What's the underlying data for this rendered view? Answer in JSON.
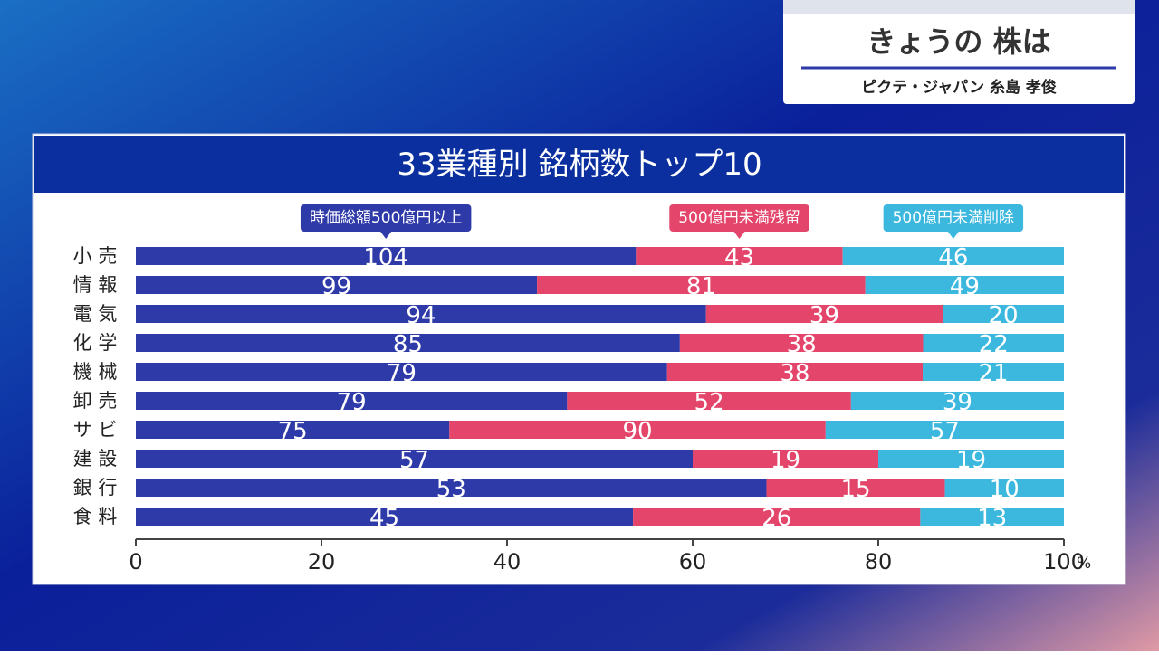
{
  "header": {
    "title": "きょうの 株は",
    "presenter": "ピクテ・ジャパン 糸島 孝俊"
  },
  "chart_data": {
    "type": "bar",
    "orientation": "horizontal",
    "stacked": "percent",
    "title": "33業種別 銘柄数トップ10",
    "categories": [
      "小 売",
      "情 報",
      "電 気",
      "化 学",
      "機 械",
      "卸 売",
      "サ ビ",
      "建 設",
      "銀 行",
      "食 料"
    ],
    "series": [
      {
        "name": "時価総額500億円以上",
        "color": "#2f3aa9",
        "values": [
          104,
          99,
          94,
          85,
          79,
          79,
          75,
          57,
          53,
          45
        ]
      },
      {
        "name": "500億円未満残留",
        "color": "#e4456a",
        "values": [
          43,
          81,
          39,
          38,
          38,
          52,
          90,
          19,
          15,
          26
        ]
      },
      {
        "name": "500億円未満削除",
        "color": "#3cb8df",
        "values": [
          46,
          49,
          20,
          22,
          21,
          39,
          57,
          19,
          10,
          13
        ]
      }
    ],
    "xlim": [
      0,
      100
    ],
    "xticks": [
      0,
      20,
      40,
      60,
      80,
      100
    ],
    "x_unit": "%"
  }
}
